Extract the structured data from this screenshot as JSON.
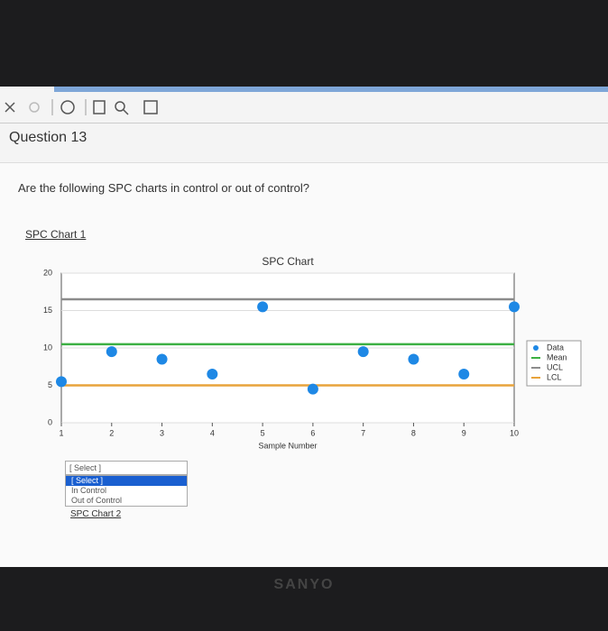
{
  "question": {
    "title": "Question 13",
    "text": "Are the following SPC charts in control or out of control?",
    "chart_link": "SPC Chart 1",
    "next_link": "SPC Chart 2"
  },
  "dropdown": {
    "selected": "[ Select ]",
    "options": [
      "[ Select ]",
      "In Control",
      "Out of Control"
    ]
  },
  "brand": "SANYO",
  "chart_data": {
    "type": "line",
    "title": "SPC Chart",
    "x_label": "Sample Number",
    "x": [
      1,
      2,
      3,
      4,
      5,
      6,
      7,
      8,
      9,
      10
    ],
    "series": [
      {
        "name": "Data",
        "color": "#1e88e5",
        "mode": "markers",
        "values": [
          5.5,
          9.5,
          8.5,
          6.5,
          15.5,
          4.5,
          9.5,
          8.5,
          6.5,
          15.5
        ]
      },
      {
        "name": "Mean",
        "color": "#3cb043",
        "mode": "line",
        "values": [
          10.5,
          10.5,
          10.5,
          10.5,
          10.5,
          10.5,
          10.5,
          10.5,
          10.5,
          10.5
        ]
      },
      {
        "name": "UCL",
        "color": "#8c8c8c",
        "mode": "line",
        "values": [
          16.5,
          16.5,
          16.5,
          16.5,
          16.5,
          16.5,
          16.5,
          16.5,
          16.5,
          16.5
        ]
      },
      {
        "name": "LCL",
        "color": "#e8a33c",
        "mode": "line",
        "values": [
          5,
          5,
          5,
          5,
          5,
          5,
          5,
          5,
          5,
          5
        ]
      }
    ],
    "xlim": [
      1,
      10
    ],
    "xticks": [
      1,
      2,
      3,
      4,
      5,
      6,
      7,
      8,
      9,
      10
    ],
    "ylim": [
      0,
      20
    ],
    "yticks": [
      0,
      5,
      10,
      15,
      20
    ],
    "grid": true,
    "legend": "right"
  }
}
